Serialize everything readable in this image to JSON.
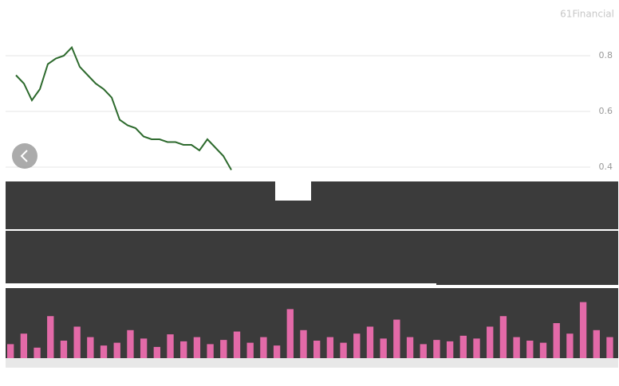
{
  "chart_data": {
    "type": "line",
    "watermark": "61Financial",
    "color": "#2d6a2d",
    "values": [
      0.73,
      0.7,
      0.64,
      0.68,
      0.77,
      0.79,
      0.8,
      0.83,
      0.76,
      0.73,
      0.7,
      0.68,
      0.65,
      0.57,
      0.55,
      0.54,
      0.51,
      0.5,
      0.5,
      0.49,
      0.49,
      0.48,
      0.48,
      0.46,
      0.5,
      0.47,
      0.44,
      0.39
    ],
    "ylim": [
      0.37,
      1.0
    ],
    "yticks": [
      0.8,
      0.6,
      0.4
    ],
    "grid": true,
    "volume": {
      "color": "#e36aa8",
      "ylim": [
        0,
        100
      ],
      "values": [
        20,
        35,
        15,
        60,
        25,
        45,
        30,
        18,
        22,
        40,
        28,
        16,
        34,
        24,
        30,
        20,
        26,
        38,
        22,
        30,
        18,
        70,
        40,
        25,
        30,
        22,
        35,
        45,
        28,
        55,
        30,
        20,
        26,
        24,
        32,
        28,
        45,
        60,
        30,
        25,
        22,
        50,
        35,
        80,
        40,
        30
      ]
    }
  }
}
